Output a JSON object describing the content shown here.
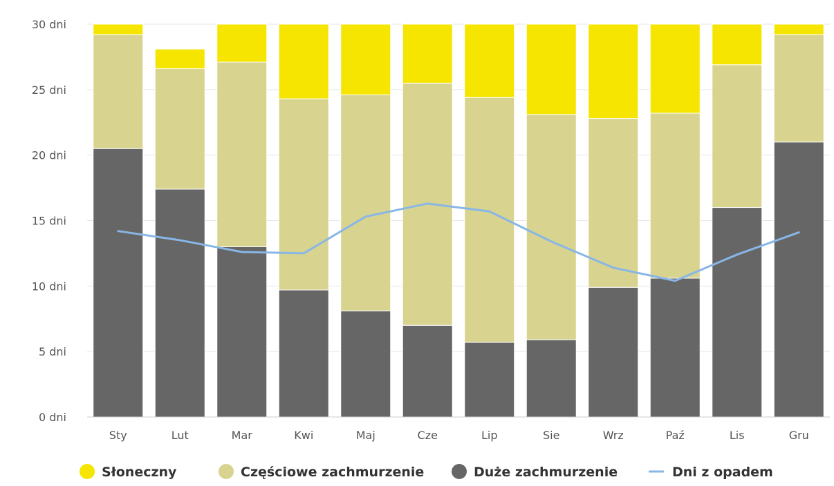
{
  "chart_data": {
    "type": "bar",
    "stacked": true,
    "categories": [
      "Sty",
      "Lut",
      "Mar",
      "Kwi",
      "Maj",
      "Cze",
      "Lip",
      "Sie",
      "Wrz",
      "Paź",
      "Lis",
      "Gru"
    ],
    "y_tick_labels": [
      "0 dni",
      "5 dni",
      "10 dni",
      "15 dni",
      "20 dni",
      "25 dni",
      "30 dni"
    ],
    "ylim": [
      0,
      30
    ],
    "grid": true,
    "legend_position": "bottom",
    "series": [
      {
        "name": "Duże zachmurzenie",
        "type": "bar",
        "color": "#666666",
        "values": [
          20.5,
          17.4,
          13.0,
          9.7,
          8.1,
          7.0,
          5.7,
          5.9,
          9.9,
          10.6,
          16.0,
          21.0
        ]
      },
      {
        "name": "Częściowe zachmurzenie",
        "type": "bar",
        "color": "#d8d38f",
        "values": [
          8.7,
          9.2,
          14.1,
          14.6,
          16.5,
          18.5,
          18.7,
          17.2,
          12.9,
          12.6,
          10.9,
          8.2
        ]
      },
      {
        "name": "Słoneczny",
        "type": "bar",
        "color": "#f5e500",
        "values": [
          0.8,
          1.5,
          2.9,
          5.7,
          5.4,
          4.5,
          5.6,
          6.9,
          7.2,
          6.8,
          3.1,
          0.8
        ]
      },
      {
        "name": "Dni z opadem",
        "type": "line",
        "color": "#88b6e6",
        "values": [
          14.2,
          13.5,
          12.6,
          12.5,
          15.3,
          16.3,
          15.7,
          13.4,
          11.4,
          10.4,
          12.4,
          14.1
        ]
      }
    ],
    "legend": [
      {
        "label": "Słoneczny",
        "marker": "circle",
        "color": "#f5e500"
      },
      {
        "label": "Częściowe zachmurzenie",
        "marker": "circle",
        "color": "#d8d38f"
      },
      {
        "label": "Duże zachmurzenie",
        "marker": "circle",
        "color": "#666666"
      },
      {
        "label": "Dni z opadem",
        "marker": "line",
        "color": "#88b6e6"
      }
    ],
    "colors": {
      "grid": "#e6e6e6",
      "axis": "#cccccc"
    }
  }
}
